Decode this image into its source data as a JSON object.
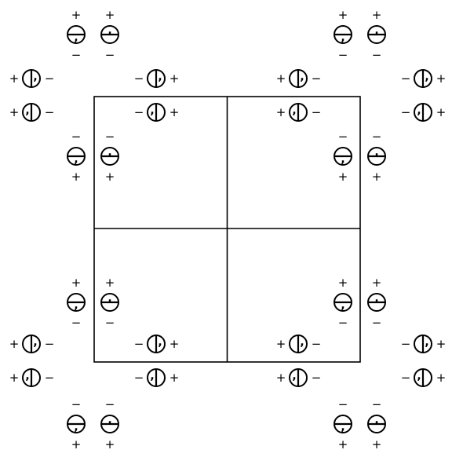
{
  "plus_sign": "+",
  "minus_sign": "−",
  "comma_mark": ",",
  "line_color": "#000000",
  "groups": [
    {
      "id": "vertical-pair-top-left-outer",
      "orientation": "horizontal-bar",
      "top_sign": "plus",
      "bottom_sign": "minus"
    },
    {
      "id": "vertical-pair-top-right-outer",
      "orientation": "horizontal-bar",
      "top_sign": "plus",
      "bottom_sign": "minus"
    },
    {
      "id": "vertical-pair-top-left-inner",
      "orientation": "horizontal-bar",
      "top_sign": "minus",
      "bottom_sign": "plus"
    },
    {
      "id": "vertical-pair-top-right-inner",
      "orientation": "horizontal-bar",
      "top_sign": "minus",
      "bottom_sign": "plus"
    },
    {
      "id": "vertical-pair-bottom-left-inner",
      "orientation": "horizontal-bar",
      "top_sign": "plus",
      "bottom_sign": "minus"
    },
    {
      "id": "vertical-pair-bottom-right-inner",
      "orientation": "horizontal-bar",
      "top_sign": "plus",
      "bottom_sign": "minus"
    },
    {
      "id": "vertical-pair-bottom-left-outer",
      "orientation": "horizontal-bar",
      "top_sign": "minus",
      "bottom_sign": "plus"
    },
    {
      "id": "vertical-pair-bottom-right-outer",
      "orientation": "horizontal-bar",
      "top_sign": "minus",
      "bottom_sign": "plus"
    }
  ],
  "rows": [
    {
      "id": "row-top-upper",
      "items": [
        {
          "id": "left-outer",
          "left_sign": "plus",
          "right_sign": "minus"
        },
        {
          "id": "left-inner",
          "left_sign": "minus",
          "right_sign": "plus"
        },
        {
          "id": "right-inner",
          "left_sign": "plus",
          "right_sign": "minus"
        },
        {
          "id": "right-outer",
          "left_sign": "minus",
          "right_sign": "plus"
        }
      ]
    },
    {
      "id": "row-top-lower",
      "items": [
        {
          "id": "left-outer",
          "left_sign": "plus",
          "right_sign": "minus"
        },
        {
          "id": "left-inner",
          "left_sign": "minus",
          "right_sign": "plus"
        },
        {
          "id": "right-inner",
          "left_sign": "plus",
          "right_sign": "minus"
        },
        {
          "id": "right-outer",
          "left_sign": "minus",
          "right_sign": "plus"
        }
      ]
    },
    {
      "id": "row-bottom-upper",
      "items": [
        {
          "id": "left-outer",
          "left_sign": "plus",
          "right_sign": "minus"
        },
        {
          "id": "left-inner",
          "left_sign": "minus",
          "right_sign": "plus"
        },
        {
          "id": "right-inner",
          "left_sign": "plus",
          "right_sign": "minus"
        },
        {
          "id": "right-outer",
          "left_sign": "minus",
          "right_sign": "plus"
        }
      ]
    },
    {
      "id": "row-bottom-lower",
      "items": [
        {
          "id": "left-outer",
          "left_sign": "plus",
          "right_sign": "minus"
        },
        {
          "id": "left-inner",
          "left_sign": "minus",
          "right_sign": "plus"
        },
        {
          "id": "right-inner",
          "left_sign": "plus",
          "right_sign": "minus"
        },
        {
          "id": "right-outer",
          "left_sign": "minus",
          "right_sign": "plus"
        }
      ]
    }
  ]
}
